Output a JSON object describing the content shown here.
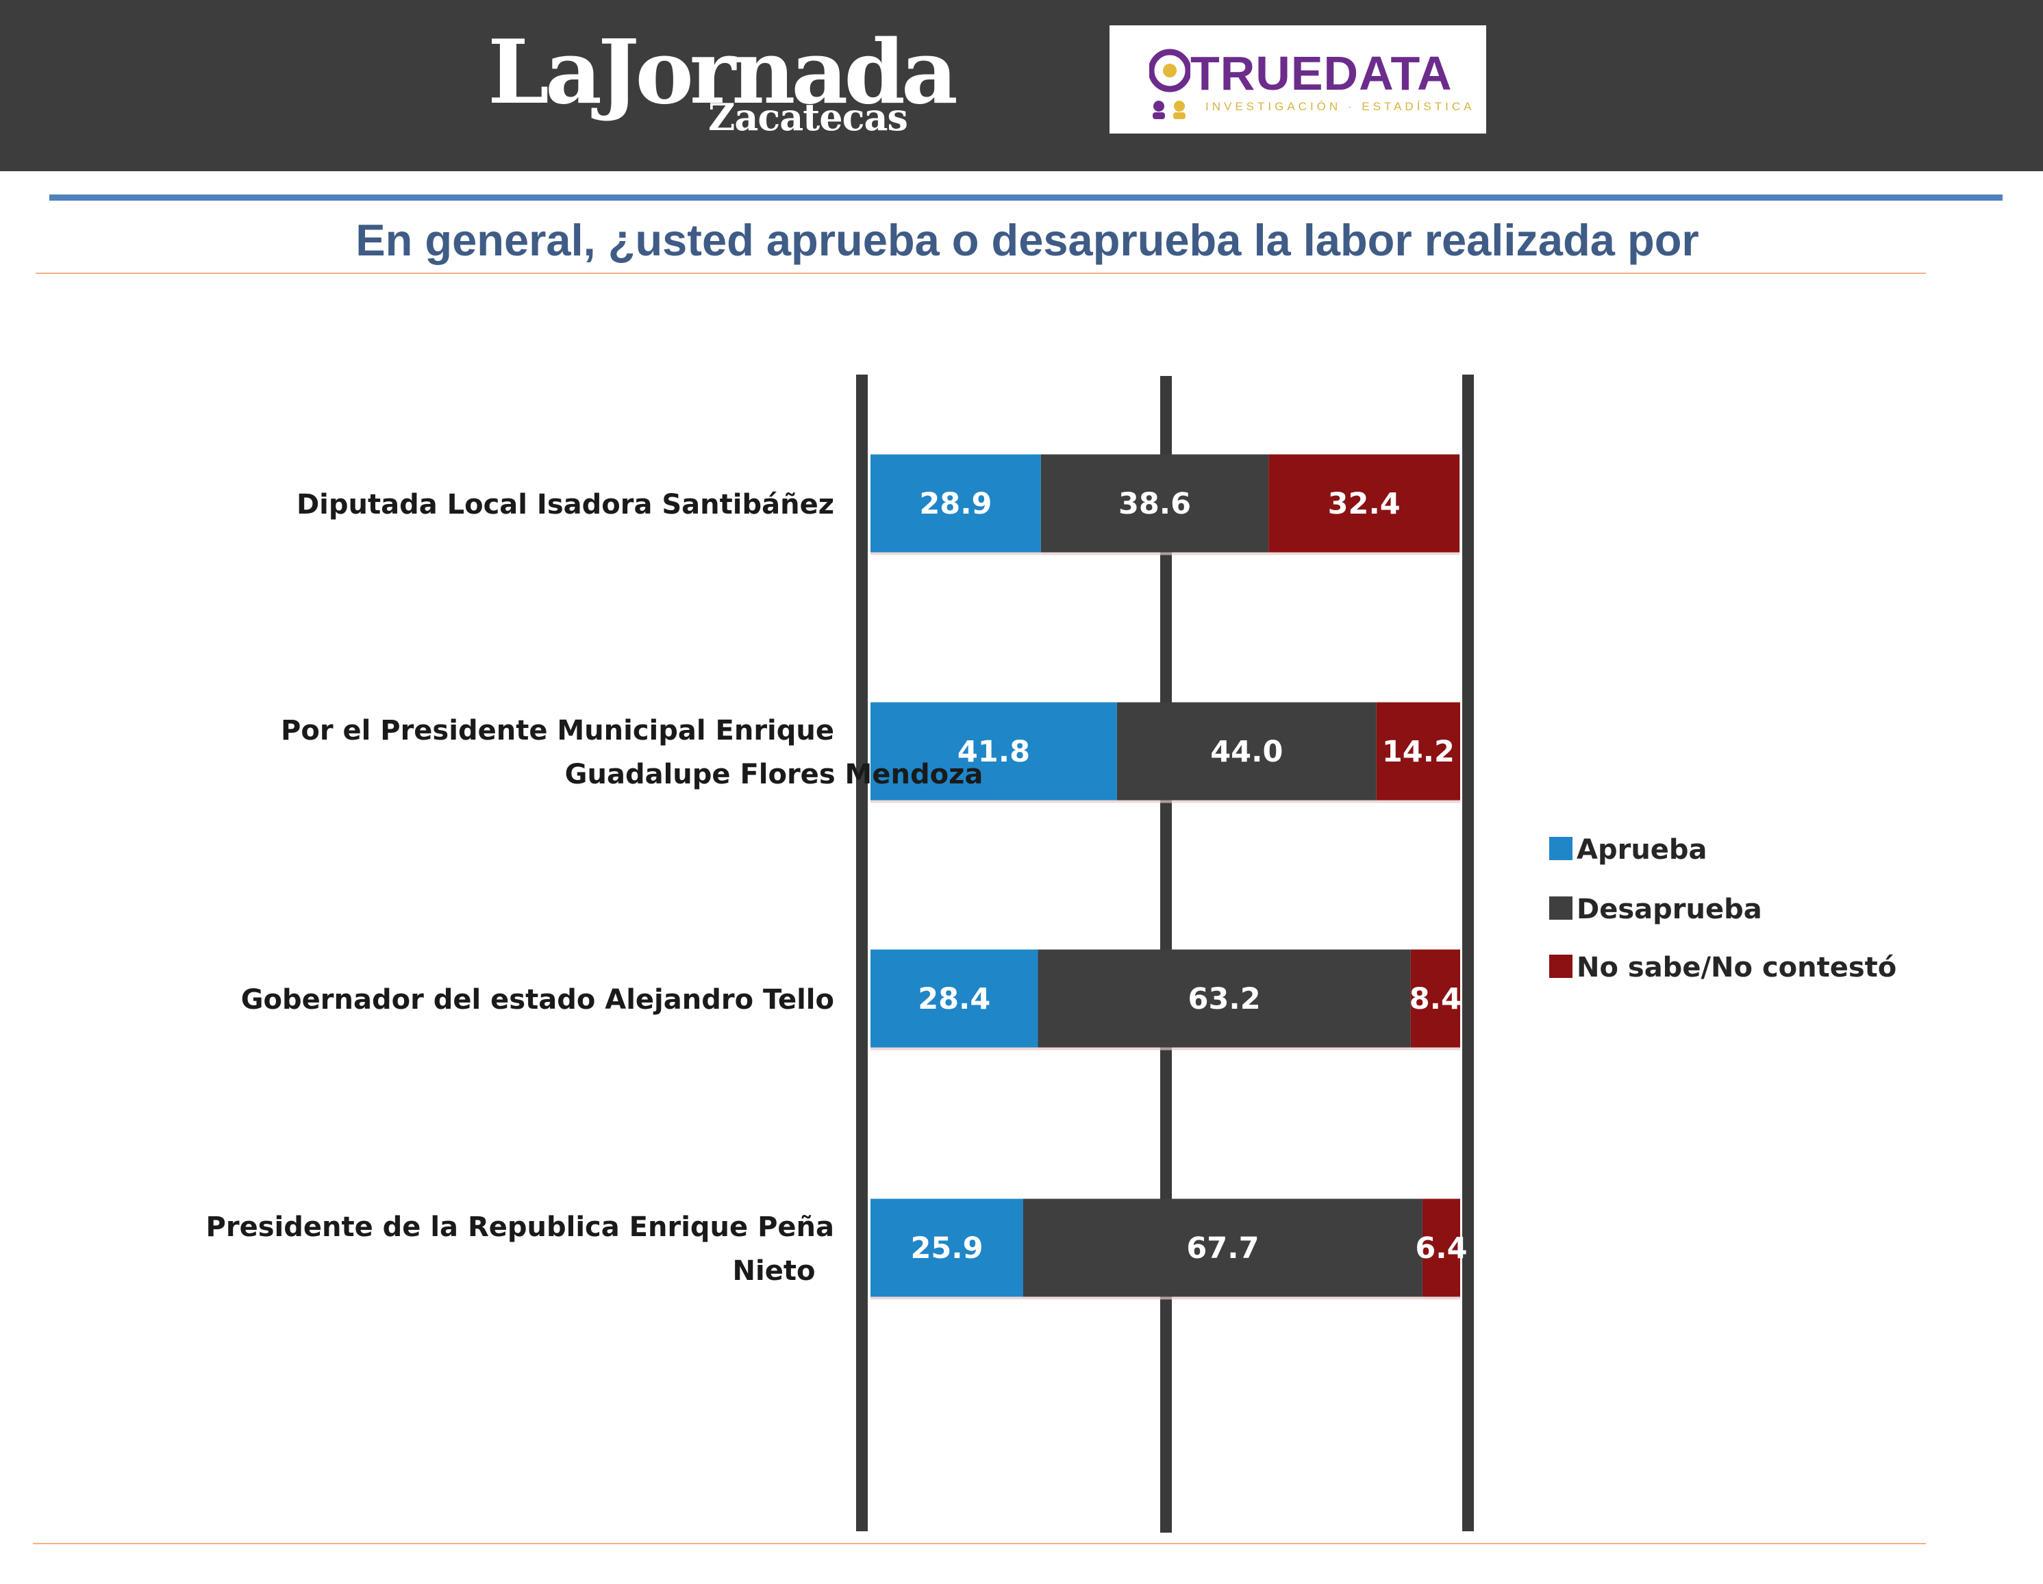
{
  "header": {
    "logo_left": {
      "main": "LaJornada",
      "sub": "Zacatecas"
    },
    "logo_right": {
      "main": "TRUEDATA",
      "sub": "INVESTIGACIÓN · ESTADÍSTICA"
    }
  },
  "chart_data": {
    "type": "bar",
    "orientation": "horizontal",
    "stacked": true,
    "title": "En general, ¿usted aprueba o desaprueba la labor realizada por",
    "categories": [
      [
        "Diputada Local  Isadora Santibáñez"
      ],
      [
        "Por el Presidente Municipal Enrique",
        "Guadalupe Flores Mendoza"
      ],
      [
        "Gobernador del estado Alejandro Tello"
      ],
      [
        "Presidente de la Republica Enrique Peña",
        "Nieto"
      ]
    ],
    "series": [
      {
        "name": "Aprueba",
        "color": "#1f86c8",
        "values": [
          28.9,
          41.8,
          28.4,
          25.9
        ],
        "labels": [
          "28.9",
          "41.8",
          "28.4",
          "25.9"
        ]
      },
      {
        "name": "Desaprueba",
        "color": "#3f3f3f",
        "values": [
          38.6,
          44.0,
          63.2,
          67.7
        ],
        "labels": [
          "38.6",
          "44.0",
          "63.2",
          "67.7"
        ]
      },
      {
        "name": "No sabe/No contestó",
        "color": "#8b1113",
        "values": [
          32.4,
          14.2,
          8.4,
          6.4
        ],
        "labels": [
          "32.4",
          "14.2",
          "8.4",
          "6.4"
        ]
      }
    ],
    "xlim": [
      0,
      100
    ],
    "legend_position": "right",
    "grid": true
  }
}
